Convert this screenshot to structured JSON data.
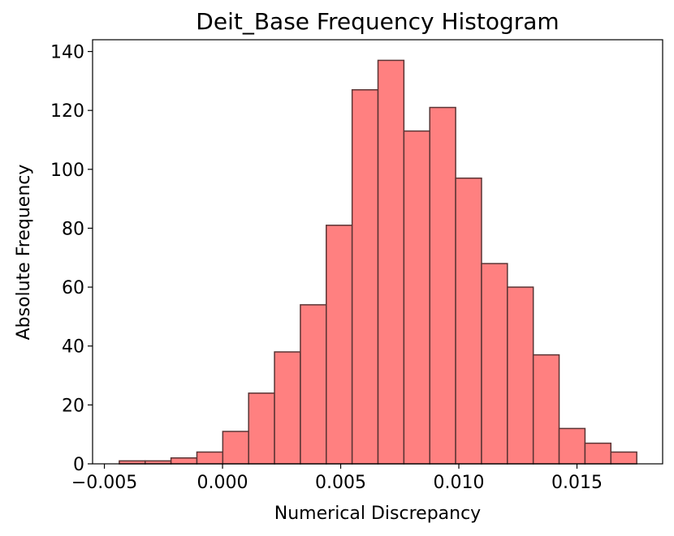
{
  "chart_data": {
    "type": "histogram",
    "title": "Deit_Base Frequency Histogram",
    "x_label": "Numerical Discrepancy",
    "y_label": "Absolute Frequency",
    "bins": [
      -0.00437,
      -0.003275,
      -0.00218,
      -0.001085,
      1e-05,
      0.001105,
      0.0022,
      0.003295,
      0.00439,
      0.005485,
      0.00658,
      0.007675,
      0.00877,
      0.009865,
      0.01096,
      0.012055,
      0.01315,
      0.014245,
      0.01534,
      0.016435,
      0.01753
    ],
    "counts": [
      1,
      1,
      2,
      4,
      11,
      24,
      38,
      54,
      81,
      127,
      137,
      113,
      121,
      97,
      68,
      60,
      37,
      12,
      7,
      4
    ],
    "color": "#ff8080",
    "edgecolor": "#5a3434",
    "xlim": [
      -0.0055,
      0.018625
    ],
    "ylim": [
      0,
      144
    ],
    "xticks": [
      {
        "value": -0.005,
        "label": "−0.005"
      },
      {
        "value": 0,
        "label": "0.000"
      },
      {
        "value": 0.005,
        "label": "0.005"
      },
      {
        "value": 0.01,
        "label": "0.010"
      },
      {
        "value": 0.015,
        "label": "0.015"
      }
    ],
    "yticks": [
      0,
      20,
      40,
      60,
      80,
      100,
      120,
      140
    ]
  }
}
